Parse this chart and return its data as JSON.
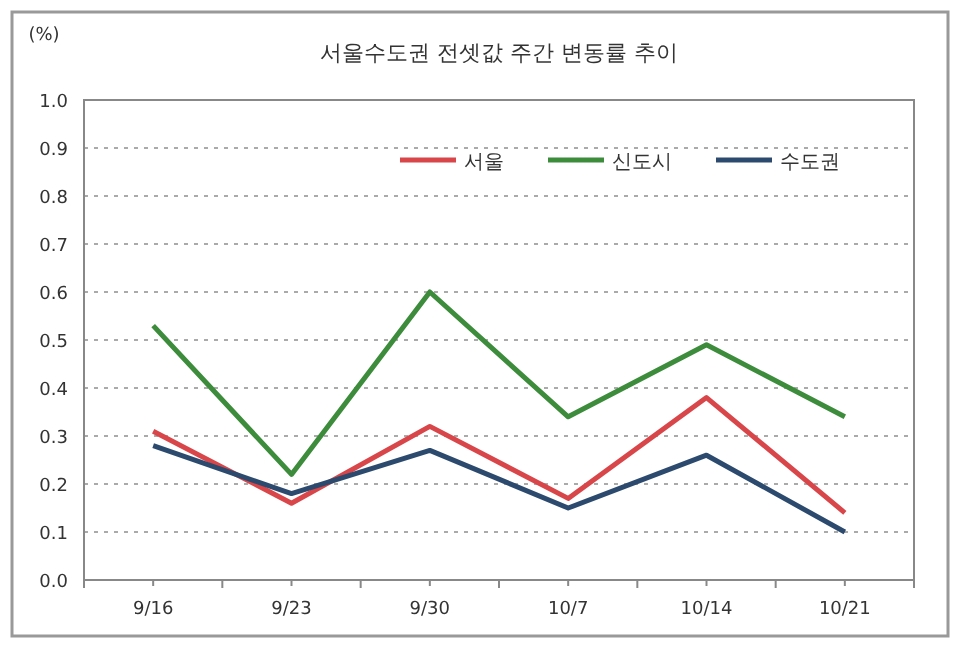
{
  "chart_data": {
    "type": "line",
    "title": "서울수도권 전셋값 주간 변동률 추이",
    "ylabel": "(%)",
    "categories": [
      "9/16",
      "9/23",
      "9/30",
      "10/7",
      "10/14",
      "10/21"
    ],
    "series": [
      {
        "name": "서울",
        "color": "#d9464a",
        "values": [
          0.31,
          0.16,
          0.32,
          0.17,
          0.38,
          0.14
        ]
      },
      {
        "name": "신도시",
        "color": "#3c8c3c",
        "values": [
          0.53,
          0.22,
          0.6,
          0.34,
          0.49,
          0.34
        ]
      },
      {
        "name": "수도권",
        "color": "#2c4a6e",
        "values": [
          0.28,
          0.18,
          0.27,
          0.15,
          0.26,
          0.1
        ]
      }
    ],
    "ylim": [
      0,
      1
    ],
    "yticks": [
      {
        "value": 0,
        "label": "0.0"
      },
      {
        "value": 0.1,
        "label": "0.1"
      },
      {
        "value": 0.2,
        "label": "0.2"
      },
      {
        "value": 0.3,
        "label": "0.3"
      },
      {
        "value": 0.4,
        "label": "0.4"
      },
      {
        "value": 0.5,
        "label": "0.5"
      },
      {
        "value": 0.6,
        "label": "0.6"
      },
      {
        "value": 0.7,
        "label": "0.7"
      },
      {
        "value": 0.8,
        "label": "0.8"
      },
      {
        "value": 0.9,
        "label": "0.9"
      },
      {
        "value": 1,
        "label": "1.0"
      }
    ],
    "grid": "y",
    "legend": "top right",
    "marker": "none",
    "line_style": "solid"
  }
}
